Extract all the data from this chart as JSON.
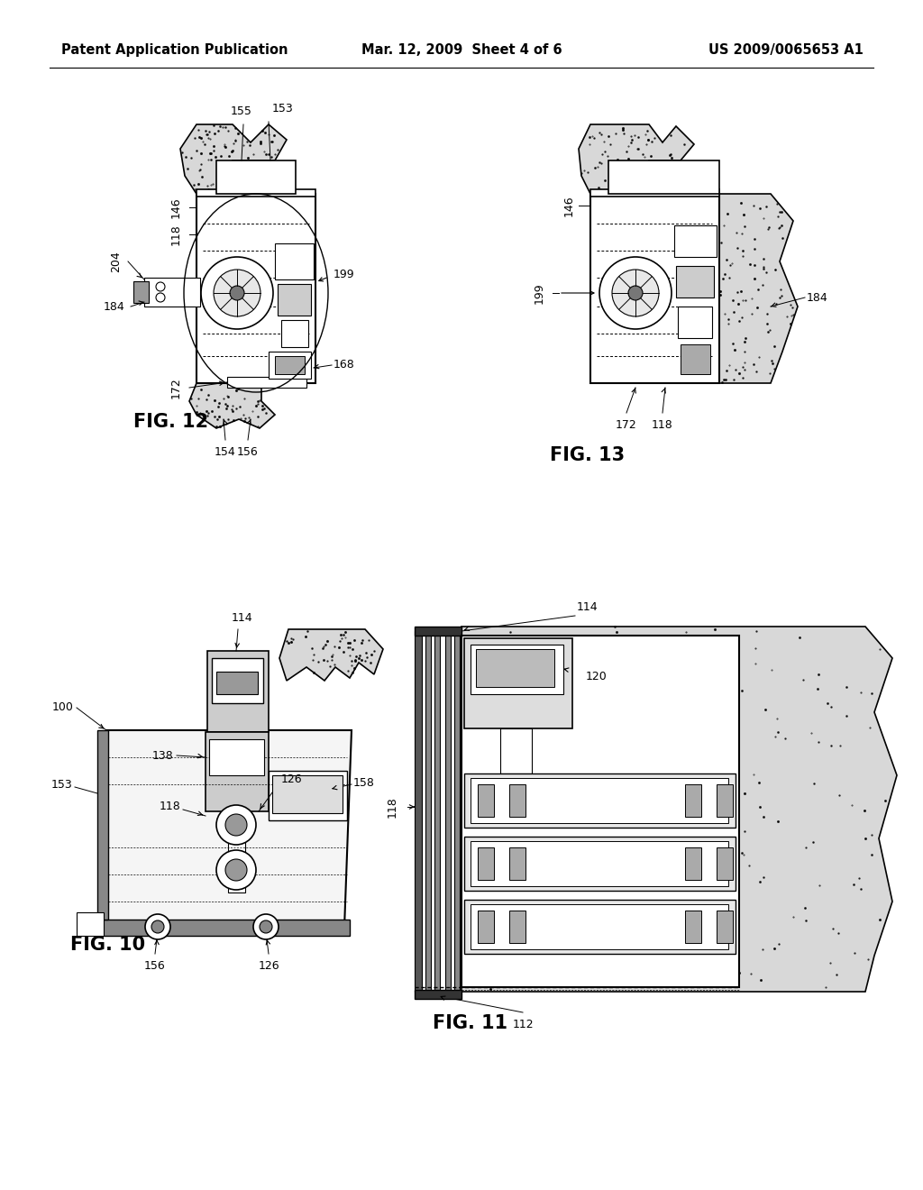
{
  "background_color": "#ffffff",
  "header_left": "Patent Application Publication",
  "header_center": "Mar. 12, 2009  Sheet 4 of 6",
  "header_right": "US 2009/0065653 A1",
  "header_fontsize": 10.5,
  "fig_label_fontsize": 15,
  "ref_fontsize": 9,
  "fig12_label": "FIG. 12",
  "fig13_label": "FIG. 13",
  "fig10_label": "FIG. 10",
  "fig11_label": "FIG. 11"
}
